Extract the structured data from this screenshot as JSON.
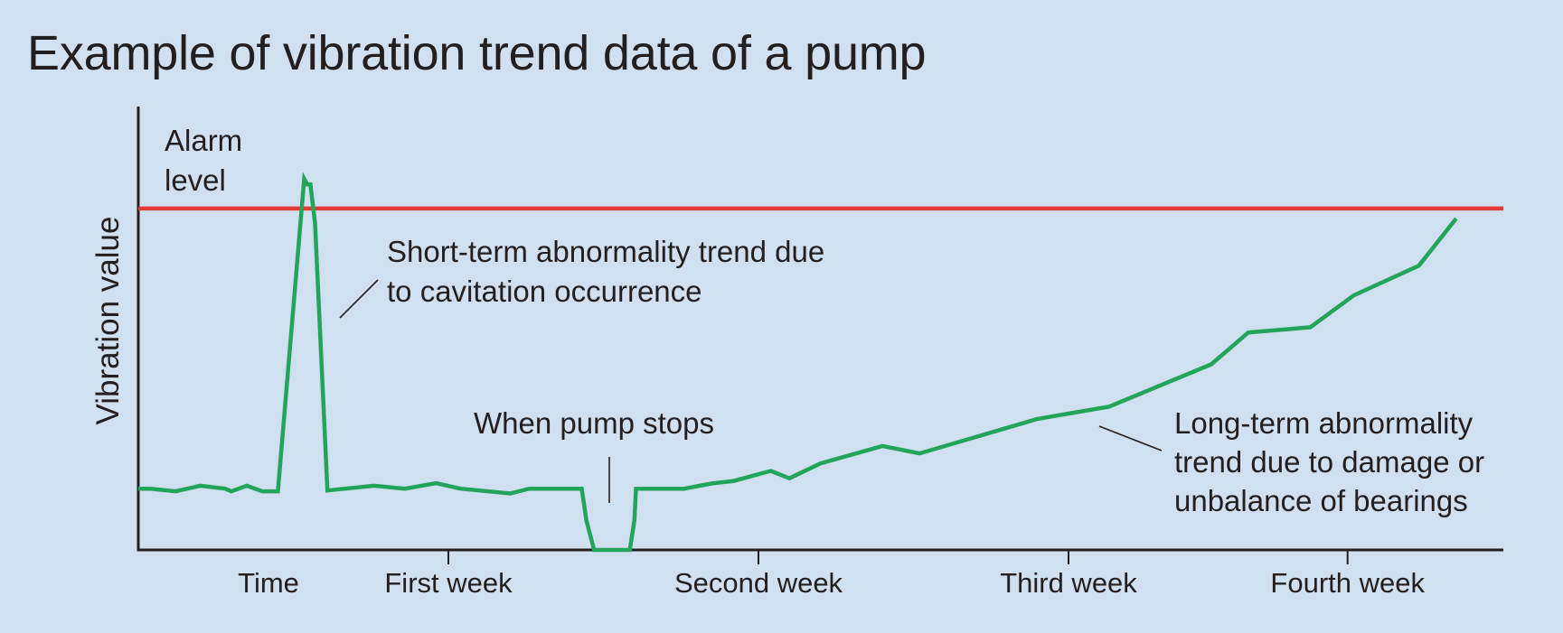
{
  "chart_data": {
    "type": "line",
    "title": "Example of vibration trend data of a pump",
    "ylabel": "Vibration value",
    "xlabel": "",
    "xlim": [
      0,
      4.4
    ],
    "ylim": [
      0,
      100
    ],
    "grid": false,
    "x_ticks": [
      {
        "x": 0.42,
        "label": "Time",
        "tick": false
      },
      {
        "x": 1.0,
        "label": "First week",
        "tick": true
      },
      {
        "x": 2.0,
        "label": "Second week",
        "tick": true
      },
      {
        "x": 3.0,
        "label": "Third week",
        "tick": true
      },
      {
        "x": 3.9,
        "label": "Fourth week",
        "tick": true
      }
    ],
    "alarm": {
      "label_lines": [
        "Alarm",
        "level"
      ],
      "value": 92,
      "color": "#e53935"
    },
    "series": [
      {
        "color": "#22a45a",
        "points": [
          [
            0.0,
            16.5
          ],
          [
            0.04,
            16.5
          ],
          [
            0.12,
            15.8
          ],
          [
            0.2,
            17.3
          ],
          [
            0.28,
            16.5
          ],
          [
            0.3,
            15.8
          ],
          [
            0.35,
            17.3
          ],
          [
            0.4,
            15.8
          ],
          [
            0.45,
            15.8
          ],
          [
            0.535,
            100
          ],
          [
            0.545,
            98.5
          ],
          [
            0.555,
            98.5
          ],
          [
            0.57,
            88
          ],
          [
            0.61,
            16.0
          ],
          [
            0.76,
            17.3
          ],
          [
            0.86,
            16.5
          ],
          [
            0.96,
            18.0
          ],
          [
            1.04,
            16.5
          ],
          [
            1.2,
            15.2
          ],
          [
            1.26,
            16.5
          ],
          [
            1.43,
            16.5
          ],
          [
            1.445,
            8.0
          ],
          [
            1.47,
            0
          ],
          [
            1.585,
            0
          ],
          [
            1.6,
            8.0
          ],
          [
            1.605,
            16.5
          ],
          [
            1.76,
            16.5
          ],
          [
            1.85,
            17.9
          ],
          [
            1.92,
            18.6
          ],
          [
            2.04,
            21.3
          ],
          [
            2.1,
            19.3
          ],
          [
            2.2,
            23.3
          ],
          [
            2.4,
            28.0
          ],
          [
            2.52,
            26.0
          ],
          [
            2.9,
            35.3
          ],
          [
            3.13,
            38.6
          ],
          [
            3.46,
            50.0
          ],
          [
            3.58,
            58.6
          ],
          [
            3.78,
            60.0
          ],
          [
            3.92,
            68.6
          ],
          [
            4.13,
            76.6
          ],
          [
            4.25,
            89.3
          ]
        ]
      }
    ],
    "annotations": [
      {
        "lines": [
          "Short-term abnormality trend due",
          "to cavitation occurrence"
        ]
      },
      {
        "lines": [
          "When pump stops"
        ]
      },
      {
        "lines": [
          "Long-term abnormality",
          "trend due to damage or",
          "unbalance of bearings"
        ]
      }
    ]
  }
}
